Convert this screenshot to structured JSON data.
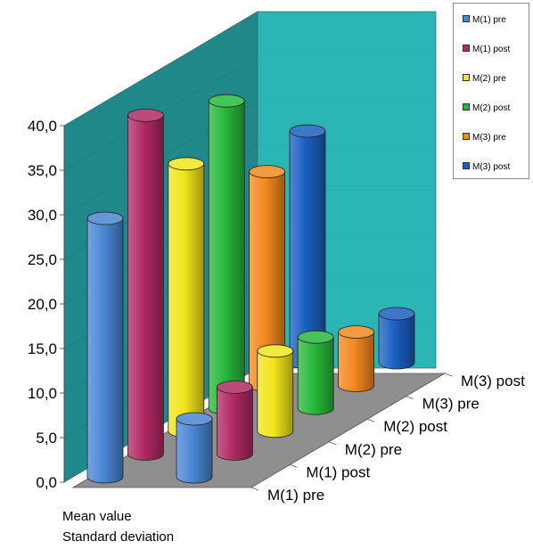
{
  "chart_data": {
    "type": "bar",
    "categories": [
      "Mean value",
      "Standard deviation"
    ],
    "series": [
      {
        "name": "M(1) pre",
        "color": "#4a86d4",
        "values": [
          29.0,
          6.5
        ]
      },
      {
        "name": "M(1) post",
        "color": "#b02a63",
        "values": [
          38.0,
          7.5
        ]
      },
      {
        "name": "M(2) pre",
        "color": "#f2e51b",
        "values": [
          30.0,
          9.0
        ]
      },
      {
        "name": "M(2) post",
        "color": "#27b83a",
        "values": [
          34.5,
          8.0
        ]
      },
      {
        "name": "M(3) pre",
        "color": "#f2891e",
        "values": [
          24.0,
          6.0
        ]
      },
      {
        "name": "M(3) post",
        "color": "#1a5fc0",
        "values": [
          26.0,
          5.5
        ]
      }
    ],
    "ylim": [
      0,
      40
    ],
    "yticks": [
      "0,0",
      "5,0",
      "10,0",
      "15,0",
      "20,0",
      "25,0",
      "30,0",
      "35,0",
      "40,0"
    ],
    "depth_labels": [
      "M(1) pre",
      "M(1) post",
      "M(2) pre",
      "M(2) post",
      "M(3) pre",
      "M(3) post"
    ],
    "legend_position": "top-right",
    "wall_color": "#2bb5b5"
  }
}
